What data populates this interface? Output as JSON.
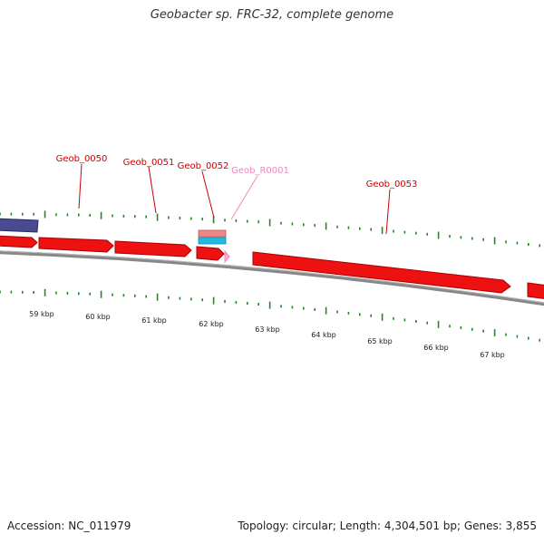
{
  "title": "Geobacter sp. FRC-32, complete genome",
  "footer": {
    "accession": "Accession: NC_011979",
    "summary": "Topology: circular; Length: 4,304,501 bp; Genes: 3,855"
  },
  "colors": {
    "gene": "#ee1111",
    "gene_edge": "#aa0000",
    "rrna": "#ffaacc",
    "rrna_label": "#ee88bb",
    "label": "#cc0000",
    "misc_blue": "#4a4a90",
    "cyan": "#22bbdd",
    "salmon": "#ee8888",
    "tick": "#228822",
    "backbone": "#888888"
  },
  "scale_labels": [
    "59 kbp",
    "60 kbp",
    "61 kbp",
    "62 kbp",
    "63 kbp",
    "64 kbp",
    "65 kbp",
    "66 kbp",
    "67 kbp"
  ],
  "gene_labels": [
    {
      "text": "Geob_0050",
      "kind": "gene"
    },
    {
      "text": "Geob_0051",
      "kind": "gene"
    },
    {
      "text": "Geob_0052",
      "kind": "gene"
    },
    {
      "text": "Geob_R0001",
      "kind": "rrna"
    },
    {
      "text": "Geob_0053",
      "kind": "gene"
    }
  ]
}
